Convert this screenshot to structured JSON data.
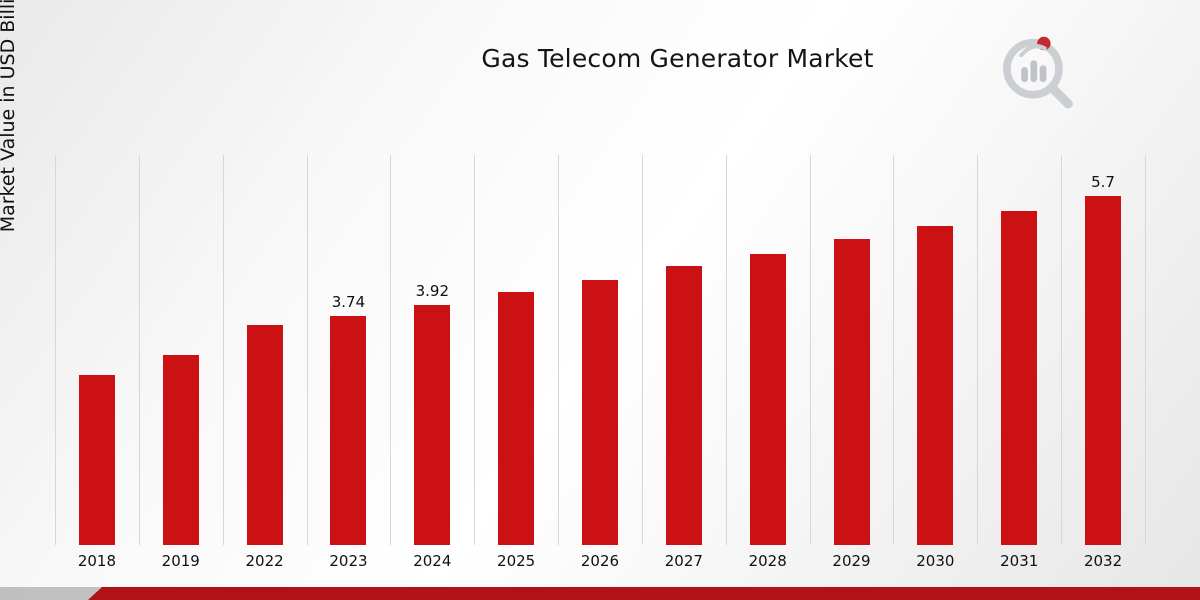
{
  "title": "Gas Telecom Generator Market",
  "y_axis_label": "Market Value in USD Billion",
  "logo": {
    "name": "market-research-future-logo"
  },
  "colors": {
    "bar": "#cb1113",
    "footer_accent": "#b01217",
    "gridline": "#d7d7d7",
    "text": "#111111"
  },
  "chart_data": {
    "type": "bar",
    "title": "Gas Telecom Generator Market",
    "xlabel": "",
    "ylabel": "Market Value in USD Billion",
    "categories": [
      "2018",
      "2019",
      "2022",
      "2023",
      "2024",
      "2025",
      "2026",
      "2027",
      "2028",
      "2029",
      "2030",
      "2031",
      "2032"
    ],
    "values": [
      2.78,
      3.11,
      3.6,
      3.74,
      3.92,
      4.13,
      4.33,
      4.56,
      4.76,
      5.0,
      5.21,
      5.45,
      5.7
    ],
    "data_labels": [
      "",
      "",
      "",
      "3.74",
      "3.92",
      "",
      "",
      "",
      "",
      "",
      "",
      "",
      "5.7"
    ],
    "ylim": [
      0,
      6.37
    ],
    "grid": "vertical",
    "legend": "none",
    "bar_color": "#cb1113"
  }
}
